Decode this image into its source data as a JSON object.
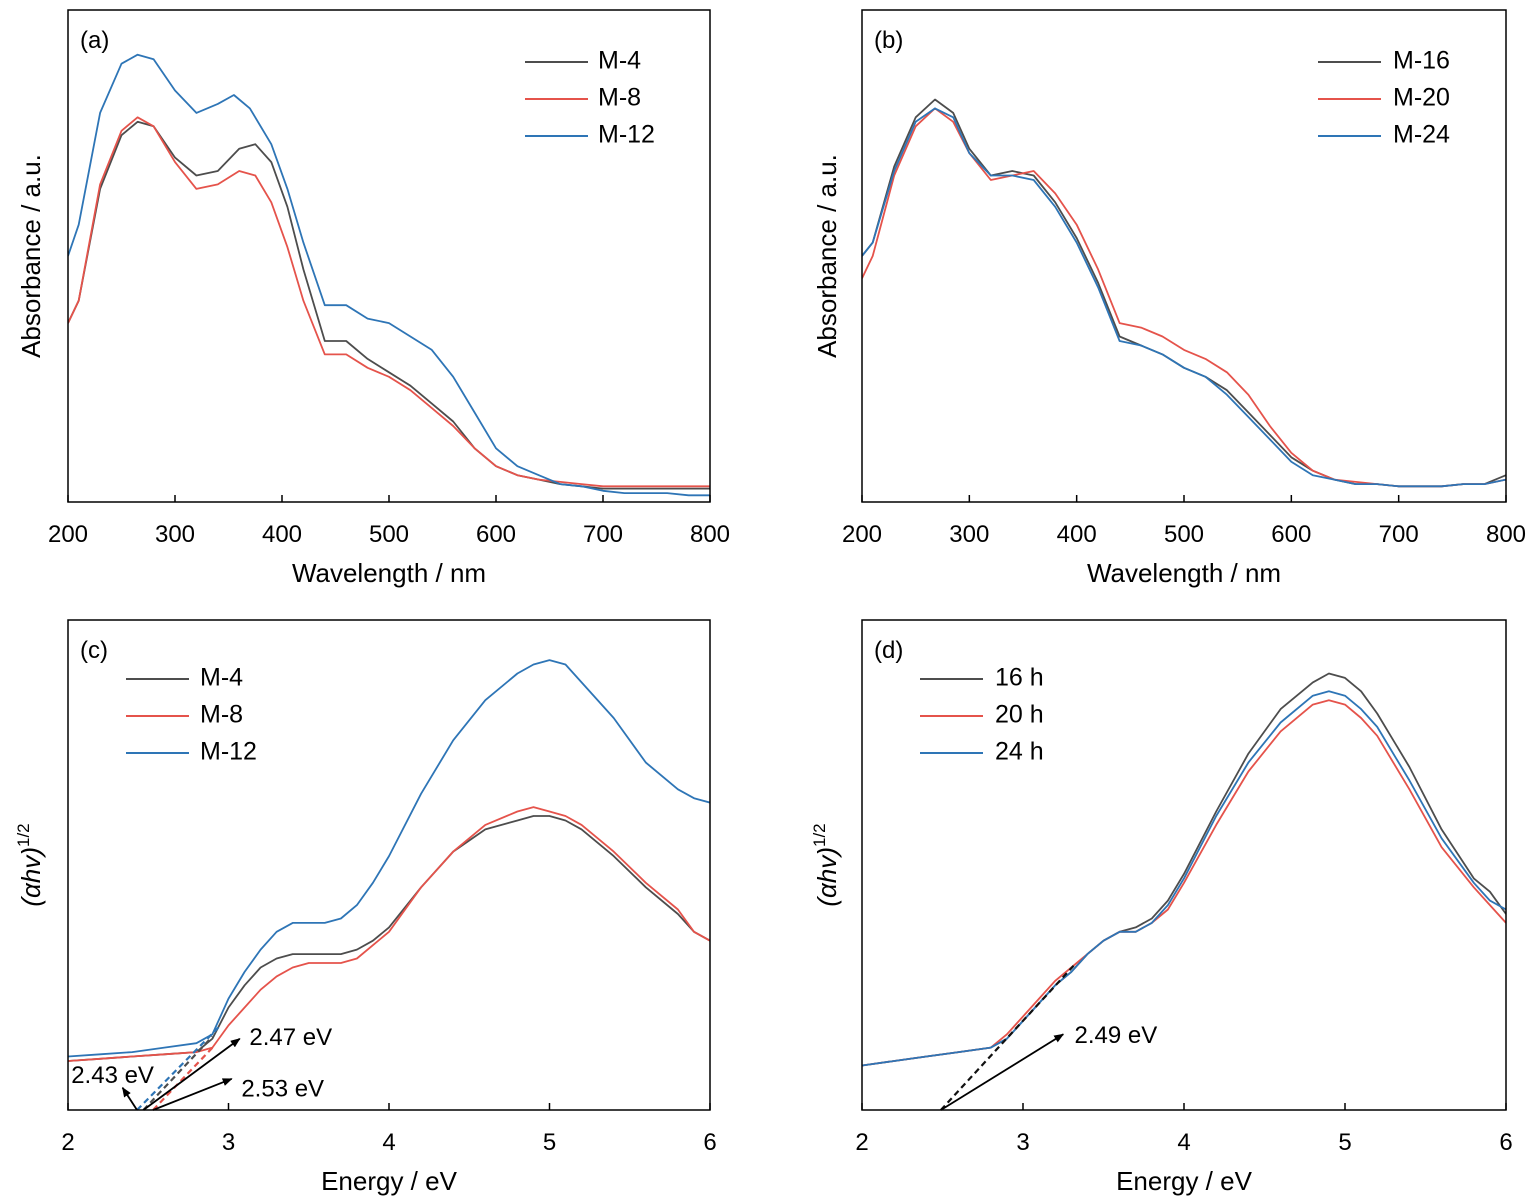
{
  "chart_data": [
    {
      "panel_label": "(a)",
      "type": "line",
      "xlabel": "Wavelength / nm",
      "ylabel": "Absorbance / a.u.",
      "xlim": [
        200,
        800
      ],
      "ylim": [
        0,
        1.1
      ],
      "xticks": [
        200,
        300,
        400,
        500,
        600,
        700,
        800
      ],
      "legend_position": "top-right",
      "series": [
        {
          "name": "M-4",
          "color": "#4d4d4d",
          "x": [
            200,
            210,
            230,
            250,
            265,
            280,
            300,
            320,
            340,
            360,
            375,
            390,
            405,
            420,
            440,
            460,
            480,
            500,
            520,
            540,
            560,
            580,
            600,
            620,
            640,
            660,
            680,
            700,
            720,
            740,
            760,
            780,
            800
          ],
          "y": [
            0.4,
            0.45,
            0.7,
            0.82,
            0.85,
            0.84,
            0.77,
            0.73,
            0.74,
            0.79,
            0.8,
            0.76,
            0.66,
            0.52,
            0.36,
            0.36,
            0.32,
            0.29,
            0.26,
            0.22,
            0.18,
            0.12,
            0.08,
            0.06,
            0.05,
            0.04,
            0.035,
            0.03,
            0.03,
            0.03,
            0.03,
            0.03,
            0.03
          ]
        },
        {
          "name": "M-8",
          "color": "#e5534b",
          "x": [
            200,
            210,
            230,
            250,
            265,
            280,
            300,
            320,
            340,
            360,
            375,
            390,
            405,
            420,
            440,
            460,
            480,
            500,
            520,
            540,
            560,
            580,
            600,
            620,
            640,
            660,
            680,
            700,
            720,
            740,
            760,
            780,
            800
          ],
          "y": [
            0.4,
            0.45,
            0.71,
            0.83,
            0.86,
            0.84,
            0.76,
            0.7,
            0.71,
            0.74,
            0.73,
            0.67,
            0.57,
            0.45,
            0.33,
            0.33,
            0.3,
            0.28,
            0.25,
            0.21,
            0.17,
            0.12,
            0.08,
            0.06,
            0.05,
            0.045,
            0.04,
            0.035,
            0.035,
            0.035,
            0.035,
            0.035,
            0.035
          ]
        },
        {
          "name": "M-12",
          "color": "#2e75b6",
          "x": [
            200,
            210,
            230,
            250,
            265,
            280,
            300,
            320,
            340,
            355,
            370,
            390,
            405,
            420,
            440,
            460,
            480,
            500,
            520,
            540,
            560,
            580,
            600,
            620,
            640,
            660,
            680,
            700,
            720,
            740,
            760,
            780,
            800
          ],
          "y": [
            0.55,
            0.62,
            0.87,
            0.98,
            1.0,
            0.99,
            0.92,
            0.87,
            0.89,
            0.91,
            0.88,
            0.8,
            0.7,
            0.58,
            0.44,
            0.44,
            0.41,
            0.4,
            0.37,
            0.34,
            0.28,
            0.2,
            0.12,
            0.08,
            0.06,
            0.04,
            0.035,
            0.025,
            0.02,
            0.02,
            0.02,
            0.015,
            0.015
          ]
        }
      ]
    },
    {
      "panel_label": "(b)",
      "type": "line",
      "xlabel": "Wavelength / nm",
      "ylabel": "Absorbance / a.u.",
      "xlim": [
        200,
        800
      ],
      "ylim": [
        0,
        1.1
      ],
      "xticks": [
        200,
        300,
        400,
        500,
        600,
        700,
        800
      ],
      "legend_position": "top-right",
      "series": [
        {
          "name": "M-16",
          "color": "#4d4d4d",
          "x": [
            200,
            210,
            230,
            250,
            268,
            285,
            300,
            320,
            340,
            360,
            380,
            400,
            420,
            440,
            460,
            480,
            500,
            520,
            540,
            560,
            580,
            600,
            620,
            640,
            660,
            680,
            700,
            720,
            740,
            760,
            780,
            800
          ],
          "y": [
            0.55,
            0.58,
            0.75,
            0.86,
            0.9,
            0.87,
            0.79,
            0.73,
            0.74,
            0.73,
            0.67,
            0.59,
            0.49,
            0.37,
            0.35,
            0.33,
            0.3,
            0.28,
            0.25,
            0.2,
            0.15,
            0.1,
            0.07,
            0.05,
            0.04,
            0.04,
            0.035,
            0.035,
            0.035,
            0.04,
            0.04,
            0.06
          ]
        },
        {
          "name": "M-20",
          "color": "#e5534b",
          "x": [
            200,
            210,
            230,
            250,
            268,
            285,
            300,
            320,
            340,
            360,
            380,
            400,
            420,
            440,
            460,
            480,
            500,
            520,
            540,
            560,
            580,
            600,
            620,
            640,
            660,
            680,
            700,
            720,
            740,
            760,
            780,
            800
          ],
          "y": [
            0.5,
            0.55,
            0.73,
            0.84,
            0.88,
            0.85,
            0.78,
            0.72,
            0.73,
            0.74,
            0.69,
            0.62,
            0.52,
            0.4,
            0.39,
            0.37,
            0.34,
            0.32,
            0.29,
            0.24,
            0.17,
            0.11,
            0.07,
            0.05,
            0.045,
            0.04,
            0.035,
            0.035,
            0.035,
            0.04,
            0.04,
            0.05
          ]
        },
        {
          "name": "M-24",
          "color": "#2e75b6",
          "x": [
            200,
            210,
            230,
            250,
            268,
            285,
            300,
            320,
            340,
            360,
            380,
            400,
            420,
            440,
            460,
            480,
            500,
            520,
            540,
            560,
            580,
            600,
            620,
            640,
            660,
            680,
            700,
            720,
            740,
            760,
            780,
            800
          ],
          "y": [
            0.55,
            0.58,
            0.74,
            0.85,
            0.88,
            0.86,
            0.78,
            0.73,
            0.73,
            0.72,
            0.66,
            0.58,
            0.48,
            0.36,
            0.35,
            0.33,
            0.3,
            0.28,
            0.24,
            0.19,
            0.14,
            0.09,
            0.06,
            0.05,
            0.04,
            0.04,
            0.035,
            0.035,
            0.035,
            0.04,
            0.04,
            0.05
          ]
        }
      ]
    },
    {
      "panel_label": "(c)",
      "type": "line",
      "xlabel": "Energy / eV",
      "ylabel_main": "(αhv)",
      "ylabel_sup": "1/2",
      "xlim": [
        2,
        6
      ],
      "ylim": [
        0,
        1.1
      ],
      "xticks": [
        2,
        3,
        4,
        5,
        6
      ],
      "legend_position": "top-left",
      "series": [
        {
          "name": "M-4",
          "color": "#4d4d4d",
          "x": [
            2.0,
            2.2,
            2.4,
            2.6,
            2.8,
            2.9,
            3.0,
            3.1,
            3.2,
            3.3,
            3.4,
            3.5,
            3.6,
            3.7,
            3.8,
            3.9,
            4.0,
            4.2,
            4.4,
            4.6,
            4.8,
            4.9,
            5.0,
            5.1,
            5.2,
            5.4,
            5.6,
            5.8,
            5.9,
            6.0
          ],
          "y": [
            0.11,
            0.115,
            0.12,
            0.125,
            0.13,
            0.16,
            0.23,
            0.28,
            0.32,
            0.34,
            0.35,
            0.35,
            0.35,
            0.35,
            0.36,
            0.38,
            0.41,
            0.5,
            0.58,
            0.63,
            0.65,
            0.66,
            0.66,
            0.65,
            0.63,
            0.57,
            0.5,
            0.44,
            0.4,
            0.38
          ]
        },
        {
          "name": "M-8",
          "color": "#e5534b",
          "x": [
            2.0,
            2.2,
            2.4,
            2.6,
            2.8,
            2.9,
            3.0,
            3.1,
            3.2,
            3.3,
            3.4,
            3.5,
            3.6,
            3.7,
            3.8,
            3.9,
            4.0,
            4.2,
            4.4,
            4.6,
            4.8,
            4.9,
            5.0,
            5.1,
            5.2,
            5.4,
            5.6,
            5.8,
            5.9,
            6.0
          ],
          "y": [
            0.11,
            0.115,
            0.12,
            0.125,
            0.13,
            0.14,
            0.19,
            0.23,
            0.27,
            0.3,
            0.32,
            0.33,
            0.33,
            0.33,
            0.34,
            0.37,
            0.4,
            0.5,
            0.58,
            0.64,
            0.67,
            0.68,
            0.67,
            0.66,
            0.64,
            0.58,
            0.51,
            0.45,
            0.4,
            0.38
          ]
        },
        {
          "name": "M-12",
          "color": "#2e75b6",
          "x": [
            2.0,
            2.2,
            2.4,
            2.6,
            2.8,
            2.9,
            3.0,
            3.1,
            3.2,
            3.3,
            3.4,
            3.5,
            3.6,
            3.7,
            3.8,
            3.9,
            4.0,
            4.2,
            4.4,
            4.6,
            4.8,
            4.9,
            5.0,
            5.1,
            5.2,
            5.4,
            5.6,
            5.8,
            5.9,
            6.0
          ],
          "y": [
            0.12,
            0.125,
            0.13,
            0.14,
            0.15,
            0.17,
            0.25,
            0.31,
            0.36,
            0.4,
            0.42,
            0.42,
            0.42,
            0.43,
            0.46,
            0.51,
            0.57,
            0.71,
            0.83,
            0.92,
            0.98,
            1.0,
            1.01,
            1.0,
            0.96,
            0.88,
            0.78,
            0.72,
            0.7,
            0.69
          ]
        }
      ],
      "fits": [
        {
          "color": "#2e75b6",
          "x": [
            2.43,
            2.95
          ],
          "y": [
            0,
            0.19
          ]
        },
        {
          "color": "#4d4d4d",
          "x": [
            2.47,
            2.9
          ],
          "y": [
            0,
            0.165
          ]
        },
        {
          "color": "#e5534b",
          "x": [
            2.53,
            2.9
          ],
          "y": [
            0,
            0.14
          ]
        }
      ],
      "annotations": [
        {
          "text": "2.43 eV",
          "label_at": [
            2.02,
            0.075
          ],
          "arrow_from": [
            2.43,
            0
          ],
          "arrow_to": [
            2.34,
            0.05
          ]
        },
        {
          "text": "2.47 eV",
          "label_at": [
            3.13,
            0.16
          ],
          "arrow_from": [
            2.47,
            0
          ],
          "arrow_to": [
            3.07,
            0.16
          ]
        },
        {
          "text": "2.53 eV",
          "label_at": [
            3.08,
            0.045
          ],
          "arrow_from": [
            2.53,
            0
          ],
          "arrow_to": [
            3.02,
            0.07
          ]
        }
      ]
    },
    {
      "panel_label": "(d)",
      "type": "line",
      "xlabel": "Energy / eV",
      "ylabel_main": "(αhv)",
      "ylabel_sup": "1/2",
      "xlim": [
        2,
        6
      ],
      "ylim": [
        0,
        1.1
      ],
      "xticks": [
        2,
        3,
        4,
        5,
        6
      ],
      "legend_position": "top-left",
      "series": [
        {
          "name": "16 h",
          "color": "#4d4d4d",
          "x": [
            2.0,
            2.2,
            2.4,
            2.6,
            2.8,
            2.9,
            3.0,
            3.1,
            3.2,
            3.3,
            3.4,
            3.5,
            3.6,
            3.7,
            3.8,
            3.9,
            4.0,
            4.2,
            4.4,
            4.6,
            4.8,
            4.9,
            5.0,
            5.1,
            5.2,
            5.4,
            5.6,
            5.8,
            5.9,
            6.0
          ],
          "y": [
            0.1,
            0.11,
            0.12,
            0.13,
            0.14,
            0.16,
            0.2,
            0.24,
            0.28,
            0.31,
            0.35,
            0.38,
            0.4,
            0.41,
            0.43,
            0.47,
            0.53,
            0.67,
            0.8,
            0.9,
            0.96,
            0.98,
            0.97,
            0.94,
            0.89,
            0.77,
            0.63,
            0.52,
            0.49,
            0.44
          ]
        },
        {
          "name": "20 h",
          "color": "#e5534b",
          "x": [
            2.0,
            2.2,
            2.4,
            2.6,
            2.8,
            2.9,
            3.0,
            3.1,
            3.2,
            3.3,
            3.4,
            3.5,
            3.6,
            3.7,
            3.8,
            3.9,
            4.0,
            4.2,
            4.4,
            4.6,
            4.8,
            4.9,
            5.0,
            5.1,
            5.2,
            5.4,
            5.6,
            5.8,
            5.9,
            6.0
          ],
          "y": [
            0.1,
            0.11,
            0.12,
            0.13,
            0.14,
            0.17,
            0.21,
            0.25,
            0.29,
            0.32,
            0.35,
            0.38,
            0.4,
            0.4,
            0.42,
            0.45,
            0.51,
            0.64,
            0.76,
            0.85,
            0.91,
            0.92,
            0.91,
            0.88,
            0.84,
            0.72,
            0.59,
            0.5,
            0.46,
            0.42
          ]
        },
        {
          "name": "24 h",
          "color": "#2e75b6",
          "x": [
            2.0,
            2.2,
            2.4,
            2.6,
            2.8,
            2.9,
            3.0,
            3.1,
            3.2,
            3.3,
            3.4,
            3.5,
            3.6,
            3.7,
            3.8,
            3.9,
            4.0,
            4.2,
            4.4,
            4.6,
            4.8,
            4.9,
            5.0,
            5.1,
            5.2,
            5.4,
            5.6,
            5.8,
            5.9,
            6.0
          ],
          "y": [
            0.1,
            0.11,
            0.12,
            0.13,
            0.14,
            0.16,
            0.2,
            0.24,
            0.28,
            0.31,
            0.35,
            0.38,
            0.4,
            0.4,
            0.42,
            0.46,
            0.52,
            0.66,
            0.78,
            0.87,
            0.93,
            0.94,
            0.93,
            0.9,
            0.86,
            0.74,
            0.61,
            0.51,
            0.47,
            0.45
          ]
        }
      ],
      "fits": [
        {
          "color": "#111111",
          "x": [
            2.49,
            3.33
          ],
          "y": [
            0,
            0.33
          ]
        }
      ],
      "annotations": [
        {
          "text": "2.49 eV",
          "label_at": [
            3.32,
            0.165
          ],
          "arrow_from": [
            2.49,
            0
          ],
          "arrow_to": [
            3.25,
            0.17
          ]
        }
      ]
    }
  ]
}
